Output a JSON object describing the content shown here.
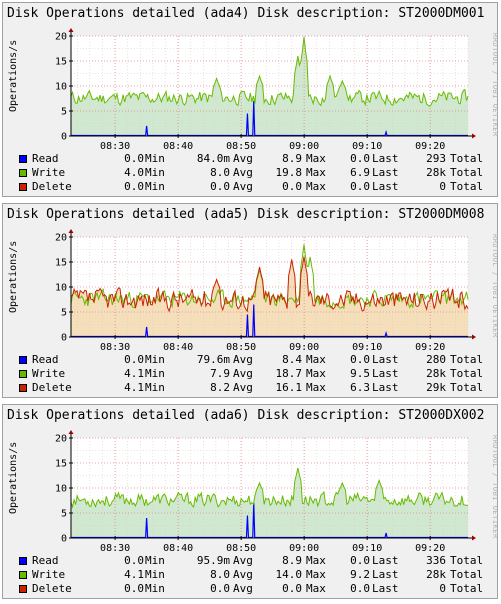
{
  "watermark": "RRDTOOL / TOBI OETIKER",
  "chart_data": [
    {
      "type": "area",
      "title": "Disk Operations detailed (ada4) Disk description: ST2000DM001",
      "ylabel": "Operations/s",
      "ylim": [
        0,
        20
      ],
      "yticks": [
        0,
        5,
        10,
        15,
        20
      ],
      "x_tick_labels": [
        "08:30",
        "08:40",
        "08:50",
        "09:00",
        "09:10",
        "09:20"
      ],
      "x_range": [
        "08:23",
        "09:26"
      ],
      "base_area": "write",
      "series": [
        {
          "key": "read",
          "name": "Read",
          "color": "#0000ff",
          "style": "line",
          "spikes": [
            {
              "t": "08:35",
              "v": 2.0
            },
            {
              "t": "08:51",
              "v": 4.5
            },
            {
              "t": "08:52",
              "v": 7.0
            },
            {
              "t": "09:13",
              "v": 0.8
            }
          ],
          "current": "0.0",
          "min": "84.0m",
          "avg": "8.9",
          "max": "0.0",
          "last": "293",
          "total": "Total"
        },
        {
          "key": "write",
          "name": "Write",
          "color": "#66bb00",
          "style": "area",
          "fill": "#cfe8cf",
          "base": 7.6,
          "noise": 1.2,
          "seed": 11,
          "peaks": [
            {
              "t": "08:46",
              "v": 11.5
            },
            {
              "t": "08:53",
              "v": 12.0
            },
            {
              "t": "08:59",
              "v": 16.0
            },
            {
              "t": "09:00",
              "v": 19.8
            },
            {
              "t": "09:04",
              "v": 12.0
            },
            {
              "t": "09:06",
              "v": 11.0
            }
          ],
          "current": "4.0",
          "min": "8.0",
          "avg": "19.8",
          "max": "6.9",
          "last": "28k",
          "total": "Total"
        },
        {
          "key": "delete",
          "name": "Delete",
          "color": "#cc2200",
          "style": "none",
          "current": "0.0",
          "min": "0.0",
          "avg": "0.0",
          "max": "0.0",
          "last": "0",
          "total": "Total"
        }
      ]
    },
    {
      "type": "area",
      "title": "Disk Operations detailed (ada5) Disk description: ST2000DM008",
      "ylabel": "Operations/s",
      "ylim": [
        0,
        20
      ],
      "yticks": [
        0,
        5,
        10,
        15,
        20
      ],
      "x_tick_labels": [
        "08:30",
        "08:40",
        "08:50",
        "09:00",
        "09:10",
        "09:20"
      ],
      "x_range": [
        "08:23",
        "09:26"
      ],
      "base_area": "delete",
      "series": [
        {
          "key": "read",
          "name": "Read",
          "color": "#0000ff",
          "style": "line",
          "spikes": [
            {
              "t": "08:35",
              "v": 2.0
            },
            {
              "t": "08:51",
              "v": 4.5
            },
            {
              "t": "08:52",
              "v": 6.5
            },
            {
              "t": "09:13",
              "v": 0.8
            }
          ],
          "current": "0.0",
          "min": "79.6m",
          "avg": "8.4",
          "max": "0.0",
          "last": "280",
          "total": "Total"
        },
        {
          "key": "write",
          "name": "Write",
          "color": "#66bb00",
          "style": "line",
          "base": 7.6,
          "noise": 1.4,
          "seed": 23,
          "peaks": [
            {
              "t": "08:53",
              "v": 13.5
            },
            {
              "t": "09:00",
              "v": 18.5
            },
            {
              "t": "09:01",
              "v": 16.0
            }
          ],
          "current": "4.1",
          "min": "7.9",
          "avg": "18.7",
          "max": "9.5",
          "last": "28k",
          "total": "Total"
        },
        {
          "key": "delete",
          "name": "Delete",
          "color": "#cc2200",
          "style": "area",
          "fill": "#f5deba",
          "base": 7.5,
          "noise": 1.8,
          "seed": 37,
          "peaks": [
            {
              "t": "08:46",
              "v": 11.5
            },
            {
              "t": "08:53",
              "v": 14.0
            },
            {
              "t": "08:58",
              "v": 15.5
            },
            {
              "t": "09:00",
              "v": 16.1
            }
          ],
          "current": "4.1",
          "min": "8.2",
          "avg": "16.1",
          "max": "6.3",
          "last": "29k",
          "total": "Total"
        }
      ]
    },
    {
      "type": "area",
      "title": "Disk Operations detailed (ada6) Disk description: ST2000DX002",
      "ylabel": "Operations/s",
      "ylim": [
        0,
        20
      ],
      "yticks": [
        0,
        5,
        10,
        15,
        20
      ],
      "x_tick_labels": [
        "08:30",
        "08:40",
        "08:50",
        "09:00",
        "09:10",
        "09:20"
      ],
      "x_range": [
        "08:23",
        "09:26"
      ],
      "base_area": "write",
      "series": [
        {
          "key": "read",
          "name": "Read",
          "color": "#0000ff",
          "style": "line",
          "spikes": [
            {
              "t": "08:35",
              "v": 4.0
            },
            {
              "t": "08:51",
              "v": 4.5
            },
            {
              "t": "08:52",
              "v": 7.0
            },
            {
              "t": "09:13",
              "v": 1.0
            }
          ],
          "current": "0.0",
          "min": "95.9m",
          "avg": "8.9",
          "max": "0.0",
          "last": "336",
          "total": "Total"
        },
        {
          "key": "write",
          "name": "Write",
          "color": "#66bb00",
          "style": "area",
          "fill": "#cfe8cf",
          "base": 7.6,
          "noise": 1.2,
          "seed": 53,
          "peaks": [
            {
              "t": "08:53",
              "v": 11.0
            },
            {
              "t": "08:59",
              "v": 14.0
            },
            {
              "t": "09:06",
              "v": 11.0
            },
            {
              "t": "09:12",
              "v": 11.5
            }
          ],
          "current": "4.1",
          "min": "8.0",
          "avg": "14.0",
          "max": "9.2",
          "last": "28k",
          "total": "Total"
        },
        {
          "key": "delete",
          "name": "Delete",
          "color": "#cc2200",
          "style": "none",
          "current": "0.0",
          "min": "0.0",
          "avg": "0.0",
          "max": "0.0",
          "last": "0",
          "total": "Total"
        }
      ]
    }
  ]
}
